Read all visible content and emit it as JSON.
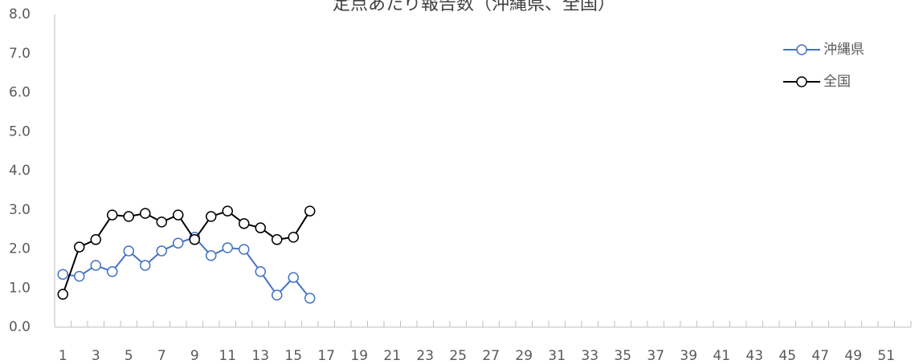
{
  "chart_data": {
    "type": "line",
    "title": "定点あたり報告数（沖縄県、全国）",
    "categories": [
      "1",
      null,
      "3",
      null,
      "5",
      null,
      "7",
      null,
      "9",
      null,
      "11",
      null,
      "13",
      null,
      "15",
      null,
      "17",
      null,
      "19",
      null,
      "21",
      null,
      "23",
      null,
      "25",
      null,
      "27",
      null,
      "29",
      null,
      "31",
      null,
      "33",
      null,
      "35",
      null,
      "37",
      null,
      "39",
      null,
      "41",
      null,
      "43",
      null,
      "45",
      null,
      "47",
      null,
      "49",
      null,
      "51",
      null
    ],
    "series": [
      {
        "name": "沖縄県",
        "color": "#4472c4",
        "values": [
          1.35,
          1.3,
          1.58,
          1.42,
          1.95,
          1.58,
          1.95,
          2.15,
          2.3,
          1.83,
          2.03,
          1.99,
          1.42,
          0.82,
          1.27,
          0.74,
          null,
          null,
          null,
          null,
          null,
          null,
          null,
          null,
          null,
          null,
          null,
          null,
          null,
          null,
          null,
          null,
          null,
          null,
          null,
          null,
          null,
          null,
          null,
          null,
          null,
          null,
          null,
          null,
          null,
          null,
          null,
          null,
          null,
          null,
          null,
          null
        ]
      },
      {
        "name": "全国",
        "color": "#000000",
        "values": [
          0.84,
          2.05,
          2.24,
          2.87,
          2.83,
          2.91,
          2.69,
          2.87,
          2.24,
          2.83,
          2.97,
          2.65,
          2.54,
          2.24,
          2.3,
          2.97,
          null,
          null,
          null,
          null,
          null,
          null,
          null,
          null,
          null,
          null,
          null,
          null,
          null,
          null,
          null,
          null,
          null,
          null,
          null,
          null,
          null,
          null,
          null,
          null,
          null,
          null,
          null,
          null,
          null,
          null,
          null,
          null,
          null,
          null,
          null,
          null
        ]
      }
    ],
    "ylim": [
      0,
      8
    ],
    "yticks": [
      {
        "value": 0,
        "label": "0.0"
      },
      {
        "value": 1,
        "label": "1.0"
      },
      {
        "value": 2,
        "label": "2.0"
      },
      {
        "value": 3,
        "label": "3.0"
      },
      {
        "value": 4,
        "label": "4.0"
      },
      {
        "value": 5,
        "label": "5.0"
      },
      {
        "value": 6,
        "label": "6.0"
      },
      {
        "value": 7,
        "label": "7.0"
      },
      {
        "value": 8,
        "label": "8.0"
      }
    ],
    "grid": false,
    "legend": "upper right"
  }
}
